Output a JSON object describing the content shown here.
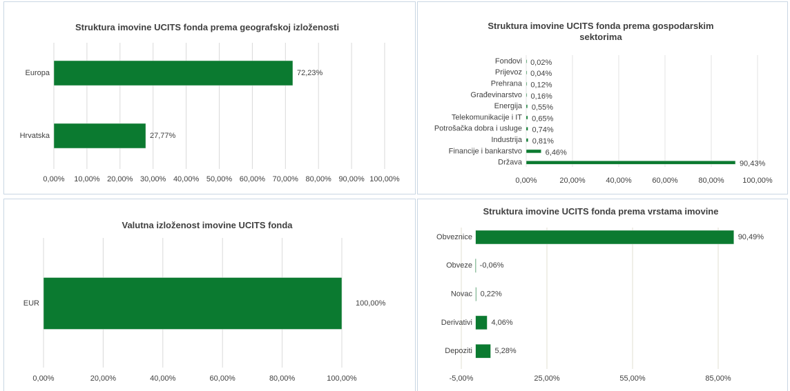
{
  "chart_data": [
    {
      "type": "bar",
      "title": "Struktura imovine UCITS fonda prema geografskoj izloženosti",
      "categories": [
        "Europa",
        "Hrvatska"
      ],
      "values": [
        72.23,
        27.77
      ],
      "value_labels": [
        "72,23%",
        "27,77%"
      ],
      "color": "#0b7a30",
      "xlim": [
        0,
        100
      ],
      "xticks": [
        {
          "value": 0,
          "label": "0,00%"
        },
        {
          "value": 10,
          "label": "10,00%"
        },
        {
          "value": 20,
          "label": "20,00%"
        },
        {
          "value": 30,
          "label": "30,00%"
        },
        {
          "value": 40,
          "label": "40,00%"
        },
        {
          "value": 50,
          "label": "50,00%"
        },
        {
          "value": 60,
          "label": "60,00%"
        },
        {
          "value": 70,
          "label": "70,00%"
        },
        {
          "value": 80,
          "label": "80,00%"
        },
        {
          "value": 90,
          "label": "90,00%"
        },
        {
          "value": 100,
          "label": "100,00%"
        }
      ],
      "grid": true
    },
    {
      "type": "bar",
      "title": "Struktura imovine UCITS fonda prema gospodarskim sektorima",
      "categories": [
        "Fondovi",
        "Prijevoz",
        "Prehrana",
        "Građevinarstvo",
        "Energija",
        "Telekomunikacije i IT",
        "Potrošačka dobra i usluge",
        "Industrija",
        "Financije i bankarstvo",
        "Država"
      ],
      "values": [
        0.02,
        0.04,
        0.12,
        0.16,
        0.55,
        0.65,
        0.74,
        0.81,
        6.46,
        90.43
      ],
      "value_labels": [
        "0,02%",
        "0,04%",
        "0,12%",
        "0,16%",
        "0,55%",
        "0,65%",
        "0,74%",
        "0,81%",
        "6,46%",
        "90,43%"
      ],
      "color": "#0b7a30",
      "xlim": [
        0,
        100
      ],
      "xticks": [
        {
          "value": 0,
          "label": "0,00%"
        },
        {
          "value": 20,
          "label": "20,00%"
        },
        {
          "value": 40,
          "label": "40,00%"
        },
        {
          "value": 60,
          "label": "60,00%"
        },
        {
          "value": 80,
          "label": "80,00%"
        },
        {
          "value": 100,
          "label": "100,00%"
        }
      ],
      "grid": true
    },
    {
      "type": "bar",
      "title": "Valutna izloženost imovine UCITS fonda",
      "categories": [
        "EUR"
      ],
      "values": [
        100
      ],
      "value_labels": [
        "100,00%"
      ],
      "color": "#0b7a30",
      "xlim": [
        0,
        100
      ],
      "xticks": [
        {
          "value": 0,
          "label": "0,00%"
        },
        {
          "value": 20,
          "label": "20,00%"
        },
        {
          "value": 40,
          "label": "40,00%"
        },
        {
          "value": 60,
          "label": "60,00%"
        },
        {
          "value": 80,
          "label": "80,00%"
        },
        {
          "value": 100,
          "label": "100,00%"
        }
      ],
      "grid": true
    },
    {
      "type": "bar",
      "title": "Struktura imovine UCITS fonda prema vrstama imovine",
      "categories": [
        "Obveznice",
        "Obveze",
        "Novac",
        "Derivativi",
        "Depoziti"
      ],
      "values": [
        90.49,
        -0.06,
        0.22,
        4.06,
        5.28
      ],
      "value_labels": [
        "90,49%",
        "-0,06%",
        "0,22%",
        "4,06%",
        "5,28%"
      ],
      "color": "#0b7a30",
      "xlim": [
        -5,
        100
      ],
      "xticks": [
        {
          "value": -5,
          "label": "-5,00%"
        },
        {
          "value": 25,
          "label": "25,00%"
        },
        {
          "value": 55,
          "label": "55,00%"
        },
        {
          "value": 85,
          "label": "85,00%"
        }
      ],
      "grid": true
    }
  ]
}
